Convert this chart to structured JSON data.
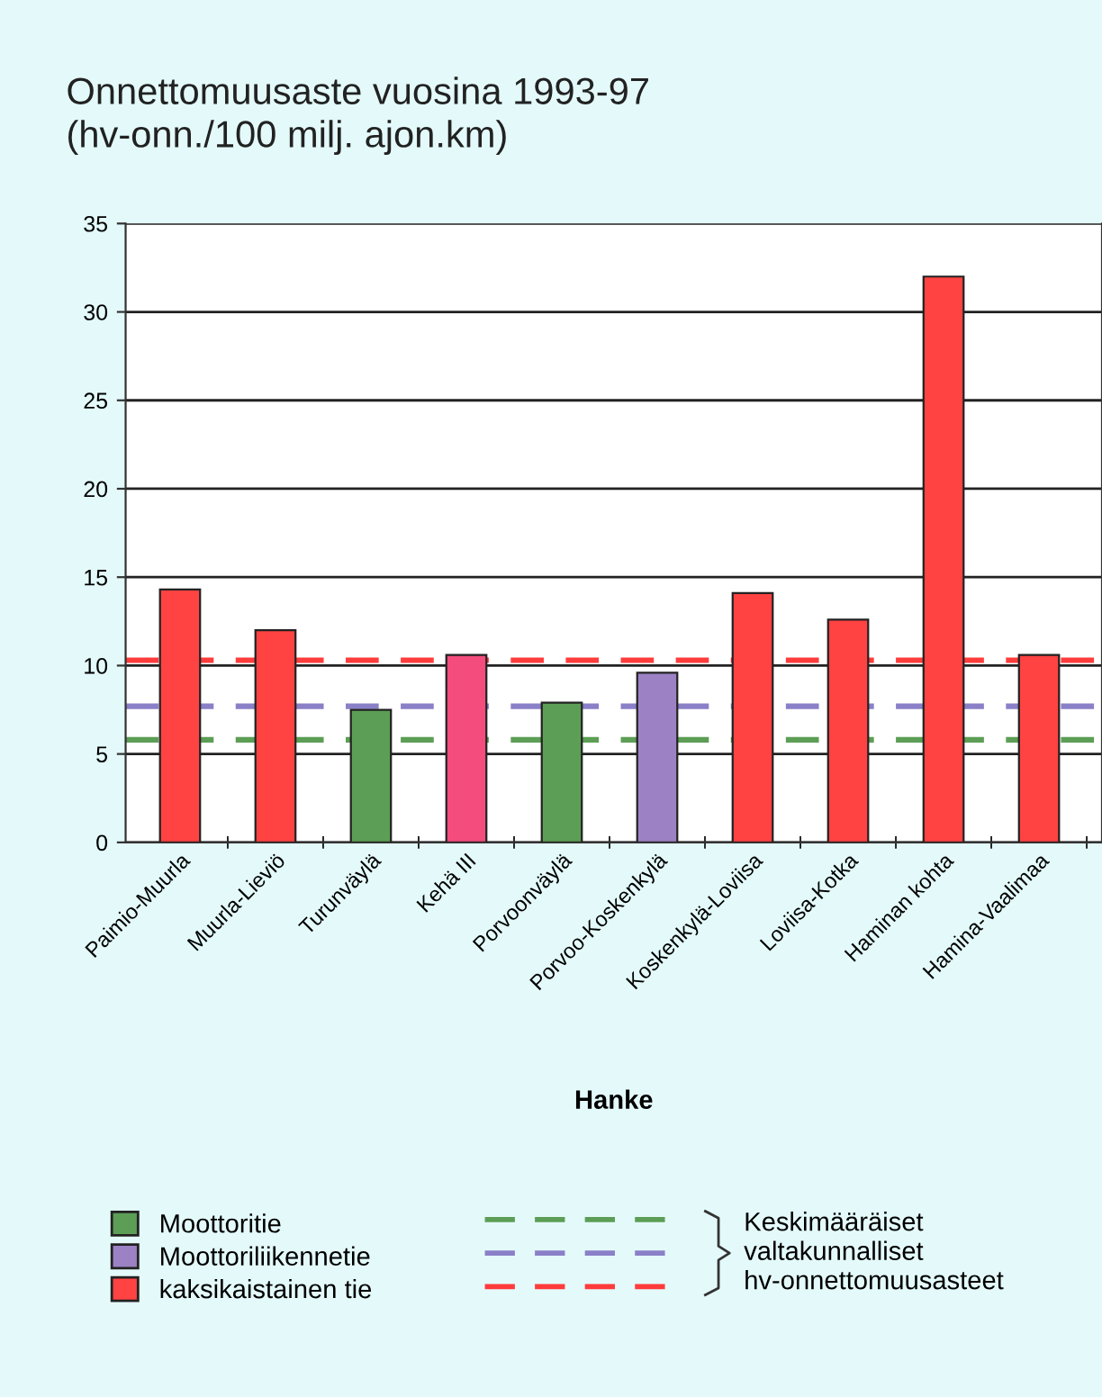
{
  "chart_data": {
    "type": "bar",
    "title": "Onnettomuusaste vuosina 1993-97\n(hv-onn./100 milj. ajon.km)",
    "xlabel": "Hanke",
    "categories": [
      "Paimio-Muurla",
      "Muurla-Lieviö",
      "Turunväylä",
      "Kehä III",
      "Porvoonväylä",
      "Porvoo-Koskenkylä",
      "Koskenkylä-Loviisa",
      "Loviisa-Kotka",
      "Haminan kohta",
      "Hamina-Vaalimaa"
    ],
    "series": [
      {
        "name": "Moottoritie",
        "color": "#5c9e55",
        "values": [
          null,
          null,
          7.5,
          null,
          7.9,
          null,
          null,
          null,
          null,
          null
        ]
      },
      {
        "name": "Moottoriliikennetie",
        "color": "#9c82c4",
        "values": [
          null,
          null,
          null,
          null,
          null,
          9.6,
          null,
          null,
          null,
          null
        ]
      },
      {
        "name": "kaksikaistainen tie",
        "color": "#ff4242",
        "colors": [
          "#ff4242",
          "#ff4242",
          null,
          "#f44c7c",
          null,
          null,
          "#ff4242",
          "#ff4242",
          "#ff4242",
          "#ff4242"
        ],
        "values": [
          14.3,
          12.0,
          null,
          10.6,
          null,
          null,
          14.1,
          12.6,
          32.0,
          10.6
        ]
      }
    ],
    "ylim": [
      0,
      35
    ],
    "yticks": [
      0,
      5,
      10,
      15,
      20,
      25,
      30,
      35
    ],
    "grid": "y",
    "legend": "bottom",
    "ref_lines": [
      {
        "axis": "y",
        "value": 5.8,
        "color": "#5c9e55",
        "line_style": "dashed"
      },
      {
        "axis": "y",
        "value": 7.7,
        "color": "#8a80c8",
        "line_style": "dashed"
      },
      {
        "axis": "y",
        "value": 10.3,
        "color": "#ff3c3c",
        "line_style": "dashed"
      }
    ],
    "annotations": [
      "Keskimääräiset\nvaltakunnalliset\nhv-onnettomuusasteet"
    ]
  }
}
